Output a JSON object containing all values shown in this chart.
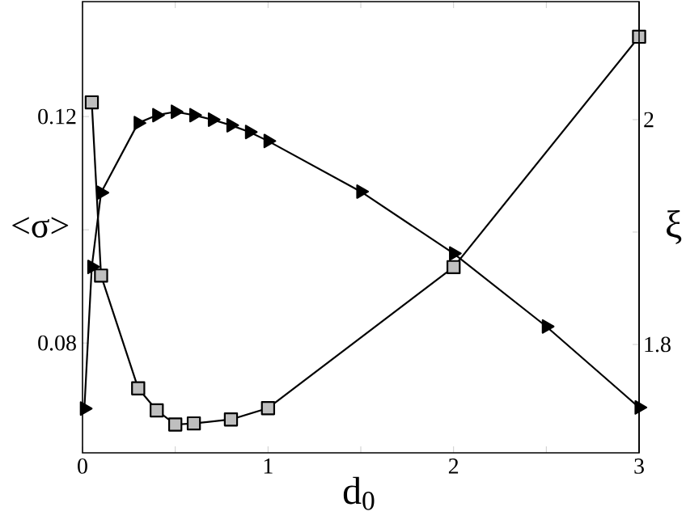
{
  "chart_data": {
    "type": "line",
    "xlabel": "d$_{0}$",
    "ylabel": "<σ>",
    "y2label": "ξ",
    "xlim": [
      0,
      3
    ],
    "xticks": [
      0,
      {
        "value": 0.5,
        "label": null
      },
      1,
      {
        "value": 1.5,
        "label": null
      },
      2,
      {
        "value": 2.5,
        "label": null
      },
      3
    ],
    "ylim": [
      0.0606,
      0.1403
    ],
    "yticks": [
      0.08,
      {
        "value": 0.1,
        "label": null
      },
      0.12
    ],
    "y2lim": [
      1.7036,
      2.105
    ],
    "y2ticks": [
      1.8,
      {
        "value": 1.9,
        "label": null
      },
      2
    ],
    "grid": false,
    "series": [
      {
        "color": "#000000",
        "marker": "square",
        "x": [
          0.05,
          0.1,
          0.3,
          0.4,
          0.5,
          0.6,
          0.8,
          1.0,
          2.0,
          3.0
        ],
        "values": [
          0.1225,
          0.0919,
          0.072,
          0.0681,
          0.0656,
          0.0658,
          0.0665,
          0.0685,
          0.0934,
          0.1341
        ]
      },
      {
        "color": "#000000",
        "marker": "triangle",
        "axis": "y2",
        "x": [
          0.01,
          0.05,
          0.1,
          0.3,
          0.4,
          0.5,
          0.6,
          0.7,
          0.8,
          0.9,
          1.0,
          1.5,
          2.0,
          2.5,
          3.0
        ],
        "values": [
          1.743,
          1.869,
          1.935,
          1.997,
          2.004,
          2.007,
          2.004,
          2.0,
          1.995,
          1.989,
          1.981,
          1.936,
          1.881,
          1.816,
          1.744
        ]
      }
    ]
  }
}
